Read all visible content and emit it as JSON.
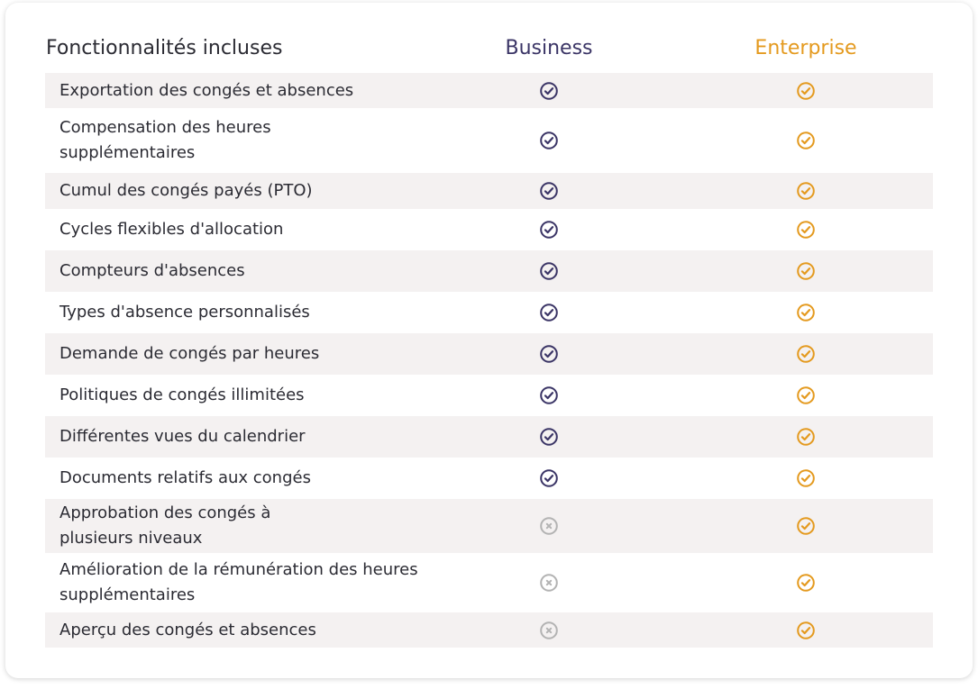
{
  "header": {
    "features_label": "Fonctionnalités incluses",
    "business_label": "Business",
    "enterprise_label": "Enterprise"
  },
  "colors": {
    "business": "#3b3566",
    "enterprise": "#e49a1f",
    "unavailable": "#b3b3b3",
    "row_shade": "#f4f1f1"
  },
  "icons": {
    "included": "check-circle-icon",
    "excluded": "x-circle-icon"
  },
  "rows": [
    {
      "label": "Exportation des congés et absences",
      "business": "included",
      "enterprise": "included"
    },
    {
      "label": "Compensation des heures supplémentaires",
      "business": "included",
      "enterprise": "included"
    },
    {
      "label": "Cumul des congés payés (PTO)",
      "business": "included",
      "enterprise": "included"
    },
    {
      "label": "Cycles flexibles d'allocation",
      "business": "included",
      "enterprise": "included"
    },
    {
      "label": "Compteurs d'absences",
      "business": "included",
      "enterprise": "included"
    },
    {
      "label": "Types d'absence personnalisés",
      "business": "included",
      "enterprise": "included"
    },
    {
      "label": "Demande de congés par heures",
      "business": "included",
      "enterprise": "included"
    },
    {
      "label": "Politiques de congés illimitées",
      "business": "included",
      "enterprise": "included"
    },
    {
      "label": "Différentes vues du calendrier",
      "business": "included",
      "enterprise": "included"
    },
    {
      "label": "Documents relatifs aux congés",
      "business": "included",
      "enterprise": "included"
    },
    {
      "label": "Approbation des congés à plusieurs niveaux",
      "business": "excluded",
      "enterprise": "included"
    },
    {
      "label": "Amélioration de la rémunération des heures supplémentaires",
      "business": "excluded",
      "enterprise": "included"
    },
    {
      "label": "Aperçu des congés et absences",
      "business": "excluded",
      "enterprise": "included"
    }
  ]
}
